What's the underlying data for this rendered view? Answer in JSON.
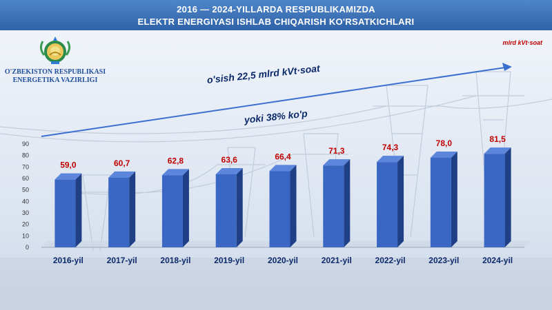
{
  "header": {
    "title_line1": "2016 — 2024-YILLARDA RESPUBLIKAMIZDA",
    "title_line2": "ELEKTR ENERGIYASI ISHLAB CHIQARISH KO'RSATKICHLARI"
  },
  "ministry": {
    "line1": "O'ZBEKISTON RESPUBLIKASI",
    "line2": "ENERGETIKA VAZIRLIGI"
  },
  "unit_label": "mlrd kVt·soat",
  "growth": {
    "line1": "o'sish  22,5 mlrd kVt·soat",
    "line2": "yoki 38% ko'p"
  },
  "colors": {
    "header": "#2f62a8",
    "bar_front": "#3a66c4",
    "bar_side": "#1f3f86",
    "value_label": "#c00000",
    "category_label": "#0d2a6b",
    "arrow": "#3a6fd0"
  },
  "chart_data": {
    "type": "bar",
    "categories": [
      "2016-yil",
      "2017-yil",
      "2018-yil",
      "2019-yil",
      "2020-yil",
      "2021-yil",
      "2022-yil",
      "2023-yil",
      "2024-yil"
    ],
    "values": [
      59.0,
      60.7,
      62.8,
      63.6,
      66.4,
      71.3,
      74.3,
      78.0,
      81.5
    ],
    "value_labels": [
      "59,0",
      "60,7",
      "62,8",
      "63,6",
      "66,4",
      "71,3",
      "74,3",
      "78,0",
      "81,5"
    ],
    "yticks": [
      0,
      10,
      20,
      30,
      40,
      50,
      60,
      70,
      80,
      90
    ],
    "ylim": [
      0,
      90
    ],
    "grid": false,
    "legend": "none",
    "style": "3d-column"
  }
}
